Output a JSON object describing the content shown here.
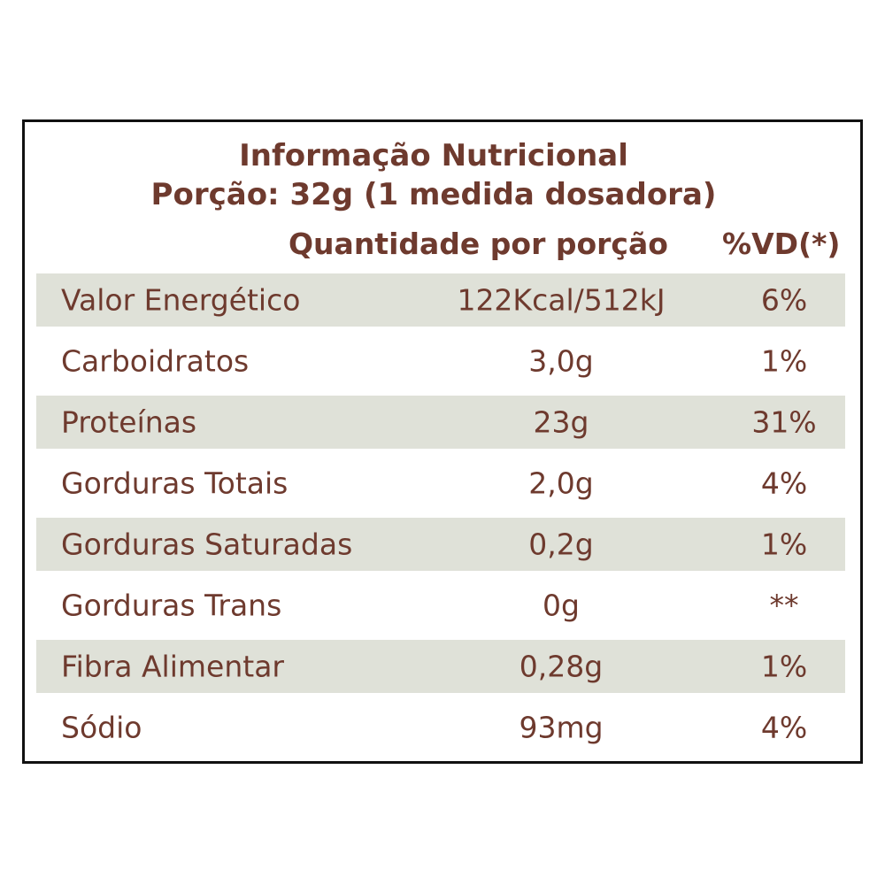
{
  "title": "Informação Nutricional",
  "portion": "Porção: 32g (1 medida dosadora)",
  "headers": {
    "quantity": "Quantidade por porção",
    "dv": "%VD(*)"
  },
  "rows": [
    {
      "name": "Valor Energético",
      "quantity": "122Kcal/512kJ",
      "dv": "6%"
    },
    {
      "name": "Carboidratos",
      "quantity": "3,0g",
      "dv": "1%"
    },
    {
      "name": "Proteínas",
      "quantity": "23g",
      "dv": "31%"
    },
    {
      "name": "Gorduras Totais",
      "quantity": "2,0g",
      "dv": "4%"
    },
    {
      "name": "Gorduras Saturadas",
      "quantity": "0,2g",
      "dv": "1%"
    },
    {
      "name": "Gorduras Trans",
      "quantity": "0g",
      "dv": "**"
    },
    {
      "name": "Fibra Alimentar",
      "quantity": "0,28g",
      "dv": "1%"
    },
    {
      "name": "Sódio",
      "quantity": "93mg",
      "dv": "4%"
    }
  ],
  "colors": {
    "text": "#6e3a2e",
    "row_shade": "#dfe1d8",
    "border": "#111111"
  }
}
